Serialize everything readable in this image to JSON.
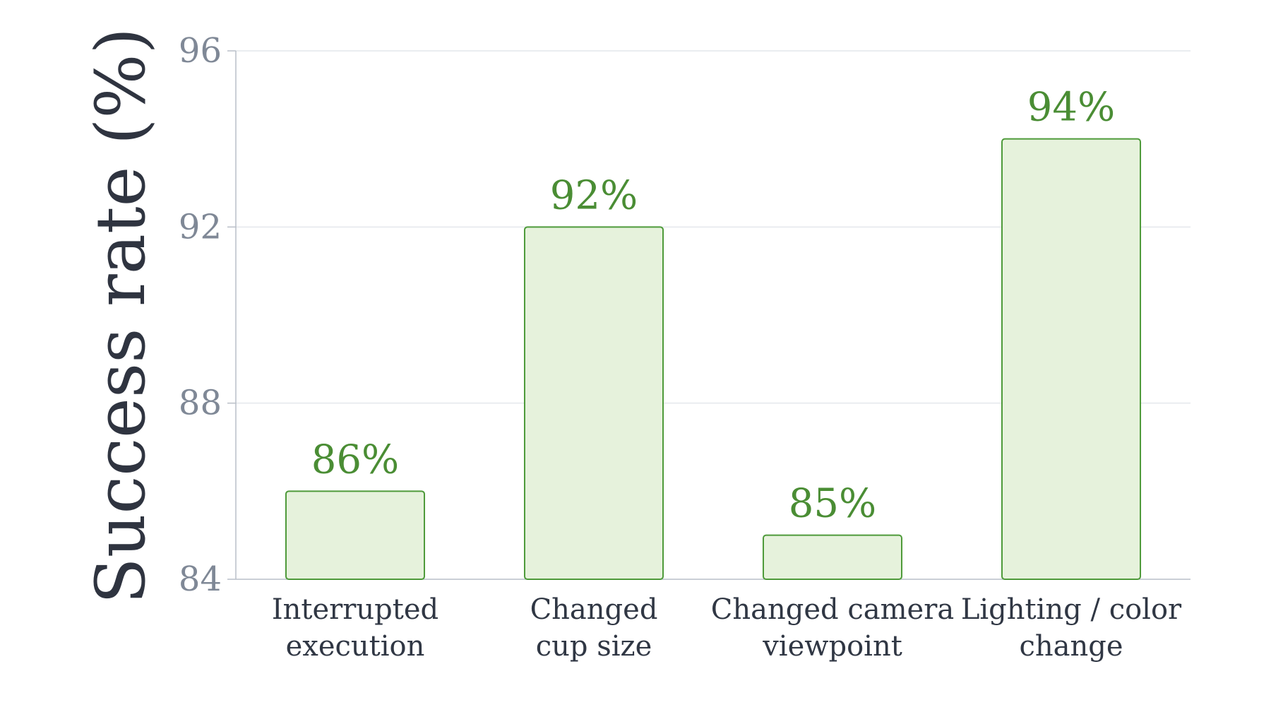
{
  "chart_data": {
    "type": "bar",
    "ylabel": "Success rate (%)",
    "xlabel": "",
    "categories": [
      [
        "Interrupted",
        "execution"
      ],
      [
        "Changed",
        "cup size"
      ],
      [
        "Changed camera",
        "viewpoint"
      ],
      [
        "Lighting / color",
        "change"
      ]
    ],
    "values": [
      86,
      92,
      85,
      94
    ],
    "data_labels": [
      "86%",
      "92%",
      "85%",
      "94%"
    ],
    "ylim": [
      84,
      96
    ],
    "yticks": [
      84,
      88,
      92,
      96
    ],
    "grid": "horizontal",
    "colors": {
      "bar_fill": "#e6f2dc",
      "bar_stroke": "#4e9a3a",
      "label": "#4a8d34",
      "grid": "#e4e7ec",
      "axis": "#b9bfc8"
    }
  }
}
